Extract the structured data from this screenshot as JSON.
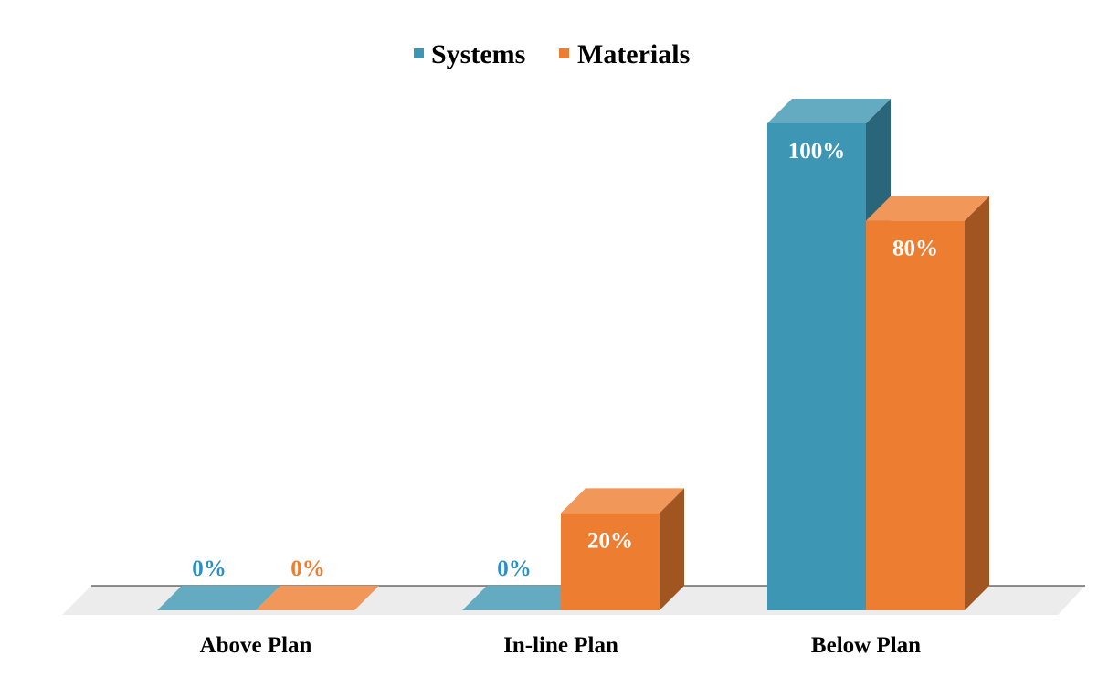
{
  "chart_data": {
    "type": "bar",
    "title": "",
    "xlabel": "",
    "ylabel": "",
    "ylim": [
      0,
      100
    ],
    "unit": "%",
    "grid": false,
    "legend_position": "top",
    "categories": [
      "Above Plan",
      "In-line Plan",
      "Below Plan"
    ],
    "series": [
      {
        "name": "Systems",
        "values": [
          0,
          0,
          100
        ],
        "labels": [
          "0%",
          "0%",
          "100%"
        ],
        "color": "#3d96b3",
        "label_color_zero": "#2a8fc4"
      },
      {
        "name": "Materials",
        "values": [
          0,
          20,
          80
        ],
        "labels": [
          "0%",
          "20%",
          "80%"
        ],
        "color": "#ed7d31",
        "label_color_zero": "#ed7d31"
      }
    ]
  }
}
